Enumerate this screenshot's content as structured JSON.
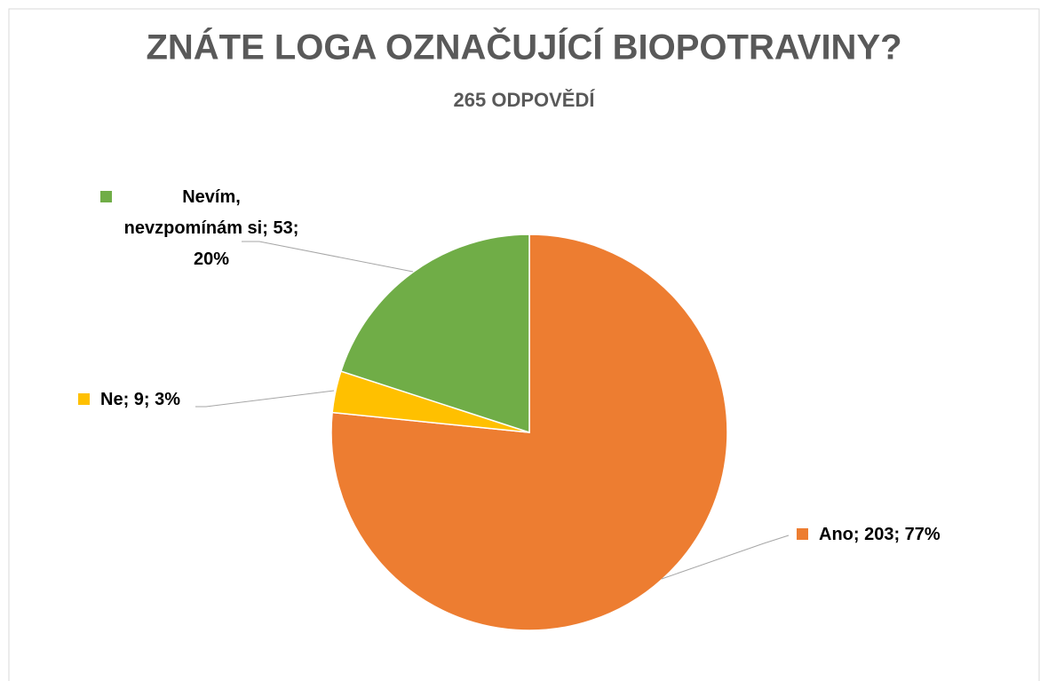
{
  "chart_data": {
    "type": "pie",
    "title": "ZNÁTE LOGA OZNAČUJÍCÍ BIOPOTRAVINY?",
    "subtitle": "265 ODPOVĚDÍ",
    "categories": [
      "Ano",
      "Ne",
      "Nevím, nevzpomínám si"
    ],
    "values": [
      203,
      9,
      53
    ],
    "value_labels": [
      "Ano; 203; 77%",
      "Ne; 9; 3%",
      "Nevím, nevzpomínám si; 53; 20%"
    ],
    "colors": [
      "#ed7d31",
      "#ffc000",
      "#70ad47"
    ]
  }
}
